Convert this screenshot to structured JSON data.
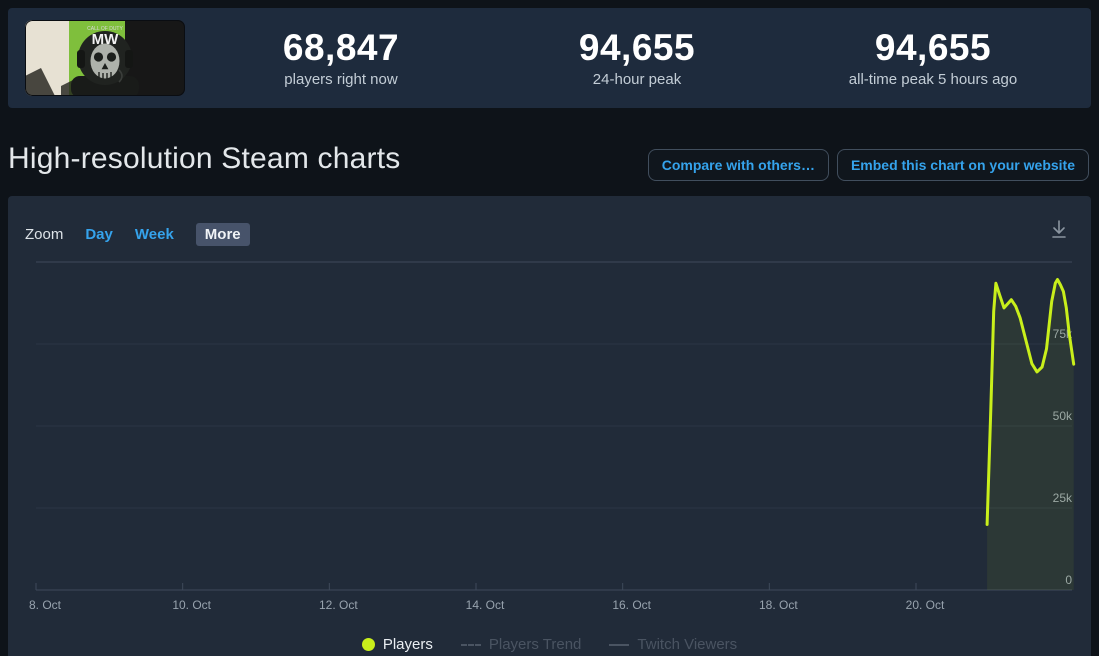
{
  "header": {
    "capsule": {
      "tiny_text": "CALL OF DUTY",
      "logo_text": "MW"
    },
    "stats": [
      {
        "value": "68,847",
        "label": "players right now"
      },
      {
        "value": "94,655",
        "label": "24-hour peak"
      },
      {
        "value": "94,655",
        "label": "all-time peak 5 hours ago"
      }
    ]
  },
  "page": {
    "title": "High-resolution Steam charts",
    "compare_button": "Compare with others…",
    "embed_button": "Embed this chart on your website"
  },
  "toolbar": {
    "zoom_label": "Zoom",
    "ranges": [
      {
        "label": "Day",
        "selected": false
      },
      {
        "label": "Week",
        "selected": false
      },
      {
        "label": "More",
        "selected": true
      }
    ],
    "download_icon": "download-icon"
  },
  "colors": {
    "accent_blue": "#35a3ec",
    "players_line": "#c9ef1b",
    "legend_disabled": "#4a5462"
  },
  "chart_data": {
    "type": "area",
    "title": "",
    "xlabel": "",
    "ylabel": "",
    "grid": true,
    "legend_position": "bottom",
    "x_axis": {
      "tick_labels": [
        "8. Oct",
        "10. Oct",
        "12. Oct",
        "14. Oct",
        "16. Oct",
        "18. Oct",
        "20. Oct"
      ],
      "tick_interval_days": 2
    },
    "y_axis": {
      "tick_labels": [
        "0",
        "25k",
        "50k",
        "75k"
      ],
      "values": [
        0,
        25000,
        50000,
        75000
      ],
      "max": 100000
    },
    "series": [
      {
        "name": "Players",
        "color": "#c9ef1b",
        "visible": true,
        "marker": "dot",
        "day_zero_label": "8. Oct",
        "points_day_value": [
          [
            12.97,
            20000
          ],
          [
            13.02,
            55000
          ],
          [
            13.06,
            85000
          ],
          [
            13.09,
            93500
          ],
          [
            13.14,
            90000
          ],
          [
            13.2,
            86000
          ],
          [
            13.26,
            87500
          ],
          [
            13.3,
            88500
          ],
          [
            13.36,
            86500
          ],
          [
            13.42,
            83000
          ],
          [
            13.5,
            76000
          ],
          [
            13.58,
            69000
          ],
          [
            13.65,
            66500
          ],
          [
            13.72,
            68000
          ],
          [
            13.78,
            73500
          ],
          [
            13.85,
            88000
          ],
          [
            13.9,
            93500
          ],
          [
            13.93,
            94655
          ],
          [
            13.97,
            93000
          ],
          [
            14.01,
            91000
          ],
          [
            14.05,
            86000
          ],
          [
            14.09,
            78000
          ],
          [
            14.15,
            68847
          ]
        ]
      },
      {
        "name": "Players Trend",
        "visible": false,
        "marker": "dashed"
      },
      {
        "name": "Twitch Viewers",
        "visible": false,
        "marker": "solid"
      }
    ]
  }
}
